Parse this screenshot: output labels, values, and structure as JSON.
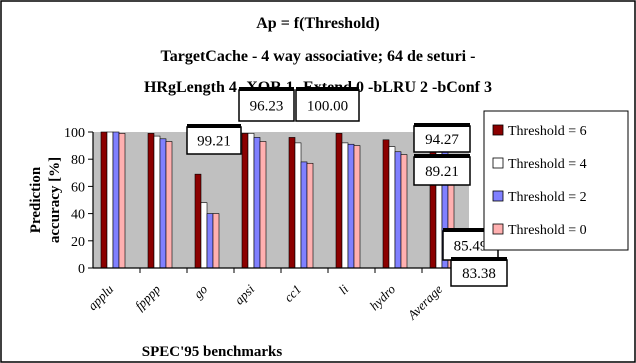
{
  "chart_data": {
    "type": "bar",
    "title_lines": [
      "Ap = f(Threshold)",
      "TargetCache - 4 way associative; 64 de seturi -",
      "HRgLength 4 -XOR 1   -Extend 0 -bLRU 2 -bConf  3"
    ],
    "xlabel": "SPEC'95 benchmarks",
    "ylabel_lines": [
      "Prediction",
      "accuracy [%]"
    ],
    "ylim": [
      0,
      100
    ],
    "yticks": [
      "0",
      "20",
      "40",
      "60",
      "80",
      "100"
    ],
    "grid": false,
    "legend_position": "right",
    "categories": [
      "applu",
      "fpppp",
      "go",
      "apsi",
      "cc1",
      "li",
      "hydro",
      "Average"
    ],
    "series": [
      {
        "name": "Threshold = 6",
        "color": "#8b0000",
        "values": [
          100,
          99,
          69,
          99,
          96,
          99,
          94.27,
          94.27
        ]
      },
      {
        "name": "Threshold = 4",
        "color": "#ffffff",
        "values": [
          100,
          97,
          48,
          99,
          92,
          92,
          89.21,
          89.21
        ]
      },
      {
        "name": "Threshold = 2",
        "color": "#8080ff",
        "values": [
          100,
          95,
          40,
          96,
          78,
          91,
          85.49,
          85.49
        ]
      },
      {
        "name": "Threshold = 0",
        "color": "#ffb0b0",
        "values": [
          99,
          93,
          40,
          93,
          77,
          90,
          83.38,
          83.38
        ]
      }
    ],
    "data_labels": [
      "99.21",
      "96.23",
      "100.00",
      "94.27",
      "89.21",
      "85.49",
      "83.38"
    ],
    "plot_background": "#c0c0c0"
  }
}
